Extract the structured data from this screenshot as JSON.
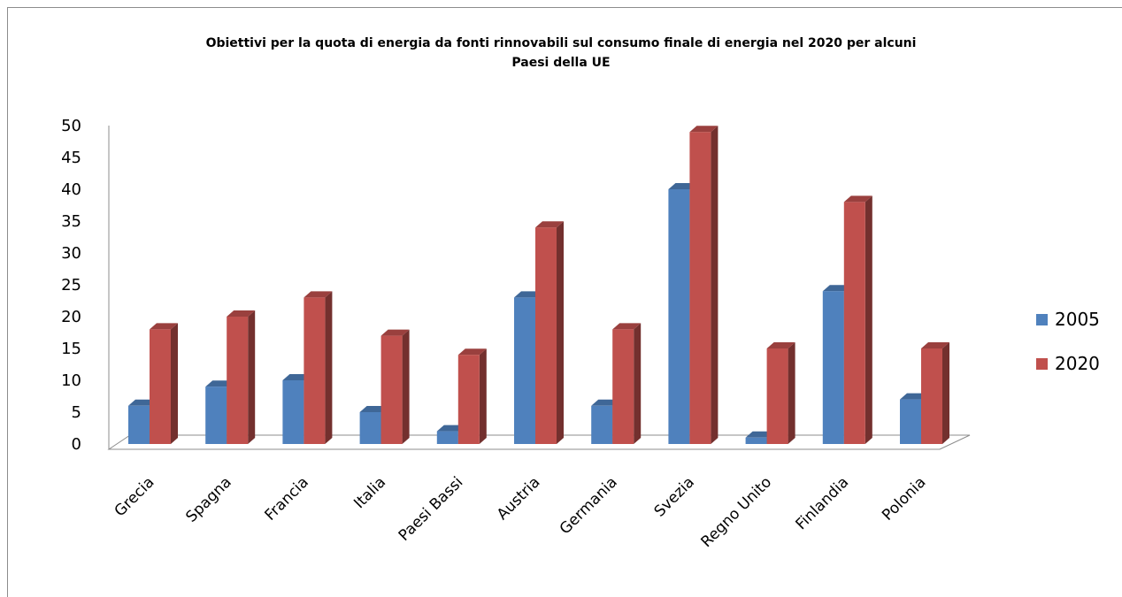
{
  "chart_data": {
    "type": "bar",
    "title_lines": [
      "Obiettivi  per la quota di energia da fonti rinnovabili sul consumo finale di energia nel 2020 per alcuni",
      "Paesi della UE"
    ],
    "categories": [
      "Grecia",
      "Spagna",
      "Francia",
      "Italia",
      "Paesi Bassi",
      "Austria",
      "Germania",
      "Svezia",
      "Regno Unito",
      "Finlandia",
      "Polonia"
    ],
    "series": [
      {
        "name": "2005",
        "color": "#4F81BD",
        "values": [
          6,
          9,
          10,
          5,
          2,
          23,
          6,
          40,
          1,
          24,
          7
        ]
      },
      {
        "name": "2020",
        "color": "#C0504D",
        "values": [
          18,
          20,
          23,
          17,
          14,
          34,
          18,
          49,
          15,
          38,
          15
        ]
      }
    ],
    "ylim": [
      0,
      50
    ],
    "yticks": [
      0,
      5,
      10,
      15,
      20,
      25,
      30,
      35,
      40,
      45,
      50
    ],
    "grid": false,
    "legend_position": "right",
    "style": "3d-clustered-column"
  }
}
